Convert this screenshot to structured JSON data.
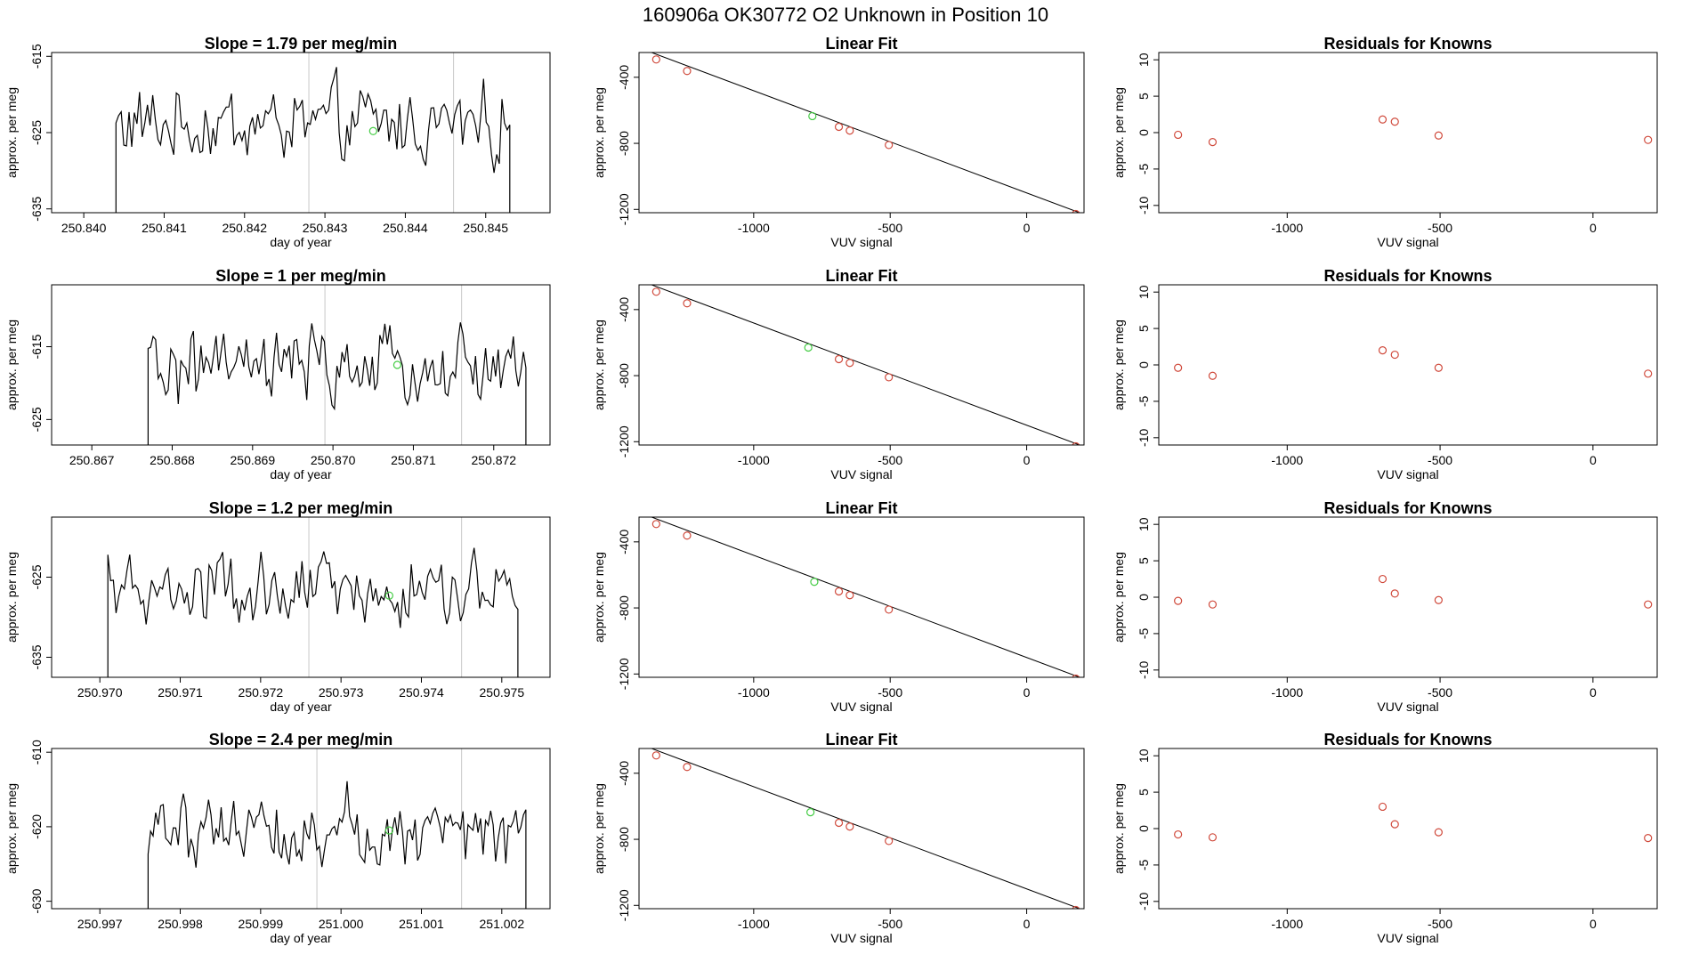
{
  "figure": {
    "title": "160906a      OK30772    O2 Unknown in Position  10"
  },
  "colors": {
    "line": "#000000",
    "vline": "#c8c8c8",
    "known_point": "#d04a3c",
    "unknown_point": "#44cc44"
  },
  "chart_data": [
    {
      "type": "line",
      "row": 0,
      "col": 0,
      "title": "Slope =  1.79  per meg/min",
      "xlabel": "day of year",
      "ylabel": "approx. per meg",
      "xlim": [
        250.8396,
        250.8458
      ],
      "ylim": [
        -635.5,
        -614.5
      ],
      "xticks": [
        250.84,
        250.841,
        250.842,
        250.843,
        250.844,
        250.845
      ],
      "xtick_labels": [
        "250.840",
        "250.841",
        "250.842",
        "250.843",
        "250.844",
        "250.845"
      ],
      "yticks": [
        -615,
        -625,
        -635
      ],
      "ytick_labels": [
        "-615",
        "-625",
        "-635"
      ],
      "start": 250.8404,
      "end": 250.8453,
      "baseline": -624,
      "amplitude": 5.5,
      "vlines": [
        250.8428,
        250.8446
      ],
      "marker": {
        "x": 250.8436,
        "y": -624.8
      }
    },
    {
      "type": "scatter",
      "row": 0,
      "col": 1,
      "title": "Linear Fit",
      "xlabel": "VUV signal",
      "ylabel": "approx. per meg",
      "xlim": [
        -1420,
        210
      ],
      "ylim": [
        -1220,
        -250
      ],
      "xticks": [
        -1000,
        -500,
        0
      ],
      "xtick_labels": [
        "-1000",
        "-500",
        "0"
      ],
      "yticks": [
        -400,
        -800,
        -1200
      ],
      "ytick_labels": [
        "-400",
        "-800",
        "-1200"
      ],
      "line": [
        [
          -1390,
          -240
        ],
        [
          210,
          -1230
        ]
      ],
      "knowns": [
        [
          -1357,
          -292
        ],
        [
          -1244,
          -362
        ],
        [
          -688,
          -700
        ],
        [
          -648,
          -723
        ],
        [
          -505,
          -810
        ],
        [
          180,
          -1228
        ]
      ],
      "unknowns": [
        [
          -785,
          -635
        ]
      ]
    },
    {
      "type": "scatter",
      "row": 0,
      "col": 2,
      "title": "Residuals for Knowns",
      "xlabel": "VUV signal",
      "ylabel": "approx. per meg",
      "xlim": [
        -1420,
        210
      ],
      "ylim": [
        -11,
        11
      ],
      "xticks": [
        -1000,
        -500,
        0
      ],
      "xtick_labels": [
        "-1000",
        "-500",
        "0"
      ],
      "yticks": [
        10,
        5,
        0,
        -5,
        -10
      ],
      "ytick_labels": [
        "10",
        "5",
        "0",
        "-5",
        "-10"
      ],
      "knowns": [
        [
          -1357,
          -0.3
        ],
        [
          -1244,
          -1.3
        ],
        [
          -688,
          1.8
        ],
        [
          -648,
          1.5
        ],
        [
          -505,
          -0.4
        ],
        [
          180,
          -1.0
        ]
      ]
    },
    {
      "type": "line",
      "row": 1,
      "col": 0,
      "title": "Slope =  1  per meg/min",
      "xlabel": "day of year",
      "ylabel": "approx. per meg",
      "xlim": [
        250.8665,
        250.8727
      ],
      "ylim": [
        -628.5,
        -606.5
      ],
      "xticks": [
        250.867,
        250.868,
        250.869,
        250.87,
        250.871,
        250.872
      ],
      "xtick_labels": [
        "250.867",
        "250.868",
        "250.869",
        "250.870",
        "250.871",
        "250.872"
      ],
      "yticks": [
        -615,
        -625
      ],
      "ytick_labels": [
        "-615",
        "-625"
      ],
      "start": 250.8677,
      "end": 250.8724,
      "baseline": -618,
      "amplitude": 5.5,
      "vlines": [
        250.8699,
        250.8716
      ],
      "marker": {
        "x": 250.8708,
        "y": -617.5
      }
    },
    {
      "type": "scatter",
      "row": 1,
      "col": 1,
      "title": "Linear Fit",
      "xlabel": "VUV signal",
      "ylabel": "approx. per meg",
      "xlim": [
        -1420,
        210
      ],
      "ylim": [
        -1220,
        -250
      ],
      "xticks": [
        -1000,
        -500,
        0
      ],
      "xtick_labels": [
        "-1000",
        "-500",
        "0"
      ],
      "yticks": [
        -400,
        -800,
        -1200
      ],
      "ytick_labels": [
        "-400",
        "-800",
        "-1200"
      ],
      "line": [
        [
          -1390,
          -240
        ],
        [
          210,
          -1230
        ]
      ],
      "knowns": [
        [
          -1357,
          -292
        ],
        [
          -1244,
          -362
        ],
        [
          -688,
          -700
        ],
        [
          -648,
          -723
        ],
        [
          -505,
          -810
        ],
        [
          180,
          -1228
        ]
      ],
      "unknowns": [
        [
          -800,
          -630
        ]
      ]
    },
    {
      "type": "scatter",
      "row": 1,
      "col": 2,
      "title": "Residuals for Knowns",
      "xlabel": "VUV signal",
      "ylabel": "approx. per meg",
      "xlim": [
        -1420,
        210
      ],
      "ylim": [
        -11,
        11
      ],
      "xticks": [
        -1000,
        -500,
        0
      ],
      "xtick_labels": [
        "-1000",
        "-500",
        "0"
      ],
      "yticks": [
        10,
        5,
        0,
        -5,
        -10
      ],
      "ytick_labels": [
        "10",
        "5",
        "0",
        "-5",
        "-10"
      ],
      "knowns": [
        [
          -1357,
          -0.4
        ],
        [
          -1244,
          -1.5
        ],
        [
          -688,
          2.0
        ],
        [
          -648,
          1.4
        ],
        [
          -505,
          -0.4
        ],
        [
          180,
          -1.2
        ]
      ]
    },
    {
      "type": "line",
      "row": 2,
      "col": 0,
      "title": "Slope =  1.2  per meg/min",
      "xlabel": "day of year",
      "ylabel": "approx. per meg",
      "xlim": [
        250.9694,
        250.9756
      ],
      "ylim": [
        -637.5,
        -617.5
      ],
      "xticks": [
        250.97,
        250.971,
        250.972,
        250.973,
        250.974,
        250.975
      ],
      "xtick_labels": [
        "250.970",
        "250.971",
        "250.972",
        "250.973",
        "250.974",
        "250.975"
      ],
      "yticks": [
        -625,
        -635
      ],
      "ytick_labels": [
        "-625",
        "-635"
      ],
      "start": 250.9701,
      "end": 250.9752,
      "baseline": -627,
      "amplitude": 5.0,
      "vlines": [
        250.9726,
        250.9745
      ],
      "marker": {
        "x": 250.9736,
        "y": -627.3
      }
    },
    {
      "type": "scatter",
      "row": 2,
      "col": 1,
      "title": "Linear Fit",
      "xlabel": "VUV signal",
      "ylabel": "approx. per meg",
      "xlim": [
        -1420,
        210
      ],
      "ylim": [
        -1220,
        -250
      ],
      "xticks": [
        -1000,
        -500,
        0
      ],
      "xtick_labels": [
        "-1000",
        "-500",
        "0"
      ],
      "yticks": [
        -400,
        -800,
        -1200
      ],
      "ytick_labels": [
        "-400",
        "-800",
        "-1200"
      ],
      "line": [
        [
          -1390,
          -240
        ],
        [
          210,
          -1230
        ]
      ],
      "knowns": [
        [
          -1357,
          -292
        ],
        [
          -1244,
          -362
        ],
        [
          -688,
          -700
        ],
        [
          -648,
          -723
        ],
        [
          -505,
          -810
        ],
        [
          180,
          -1228
        ]
      ],
      "unknowns": [
        [
          -778,
          -642
        ]
      ]
    },
    {
      "type": "scatter",
      "row": 2,
      "col": 2,
      "title": "Residuals for Knowns",
      "xlabel": "VUV signal",
      "ylabel": "approx. per meg",
      "xlim": [
        -1420,
        210
      ],
      "ylim": [
        -11,
        11
      ],
      "xticks": [
        -1000,
        -500,
        0
      ],
      "xtick_labels": [
        "-1000",
        "-500",
        "0"
      ],
      "yticks": [
        10,
        5,
        0,
        -5,
        -10
      ],
      "ytick_labels": [
        "10",
        "5",
        "0",
        "-5",
        "-10"
      ],
      "knowns": [
        [
          -1357,
          -0.5
        ],
        [
          -1244,
          -1.0
        ],
        [
          -688,
          2.5
        ],
        [
          -648,
          0.5
        ],
        [
          -505,
          -0.4
        ],
        [
          180,
          -1.0
        ]
      ]
    },
    {
      "type": "line",
      "row": 3,
      "col": 0,
      "title": "Slope =  2.4  per meg/min",
      "xlabel": "day of year",
      "ylabel": "approx. per meg",
      "xlim": [
        250.9964,
        251.0026
      ],
      "ylim": [
        -631,
        -609.5
      ],
      "xticks": [
        250.997,
        250.998,
        250.999,
        251.0,
        251.001,
        251.002
      ],
      "xtick_labels": [
        "250.997",
        "250.998",
        "250.999",
        "251.000",
        "251.001",
        "251.002"
      ],
      "yticks": [
        -610,
        -620,
        -630
      ],
      "ytick_labels": [
        "-610",
        "-620",
        "-630"
      ],
      "start": 250.9976,
      "end": 251.0023,
      "baseline": -620,
      "amplitude": 5.5,
      "vlines": [
        250.9997,
        251.0015
      ],
      "marker": {
        "x": 251.0006,
        "y": -620.5
      }
    },
    {
      "type": "scatter",
      "row": 3,
      "col": 1,
      "title": "Linear Fit",
      "xlabel": "VUV signal",
      "ylabel": "approx. per meg",
      "xlim": [
        -1420,
        210
      ],
      "ylim": [
        -1220,
        -250
      ],
      "xticks": [
        -1000,
        -500,
        0
      ],
      "xtick_labels": [
        "-1000",
        "-500",
        "0"
      ],
      "yticks": [
        -400,
        -800,
        -1200
      ],
      "ytick_labels": [
        "-400",
        "-800",
        "-1200"
      ],
      "line": [
        [
          -1390,
          -240
        ],
        [
          210,
          -1230
        ]
      ],
      "knowns": [
        [
          -1357,
          -292
        ],
        [
          -1244,
          -362
        ],
        [
          -688,
          -700
        ],
        [
          -648,
          -723
        ],
        [
          -505,
          -810
        ],
        [
          180,
          -1228
        ]
      ],
      "unknowns": [
        [
          -792,
          -636
        ]
      ]
    },
    {
      "type": "scatter",
      "row": 3,
      "col": 2,
      "title": "Residuals for Knowns",
      "xlabel": "VUV signal",
      "ylabel": "approx. per meg",
      "xlim": [
        -1420,
        210
      ],
      "ylim": [
        -11,
        11
      ],
      "xticks": [
        -1000,
        -500,
        0
      ],
      "xtick_labels": [
        "-1000",
        "-500",
        "0"
      ],
      "yticks": [
        10,
        5,
        0,
        -5,
        -10
      ],
      "ytick_labels": [
        "10",
        "5",
        "0",
        "-5",
        "-10"
      ],
      "knowns": [
        [
          -1357,
          -0.8
        ],
        [
          -1244,
          -1.2
        ],
        [
          -688,
          3.0
        ],
        [
          -648,
          0.6
        ],
        [
          -505,
          -0.5
        ],
        [
          180,
          -1.3
        ]
      ]
    }
  ]
}
